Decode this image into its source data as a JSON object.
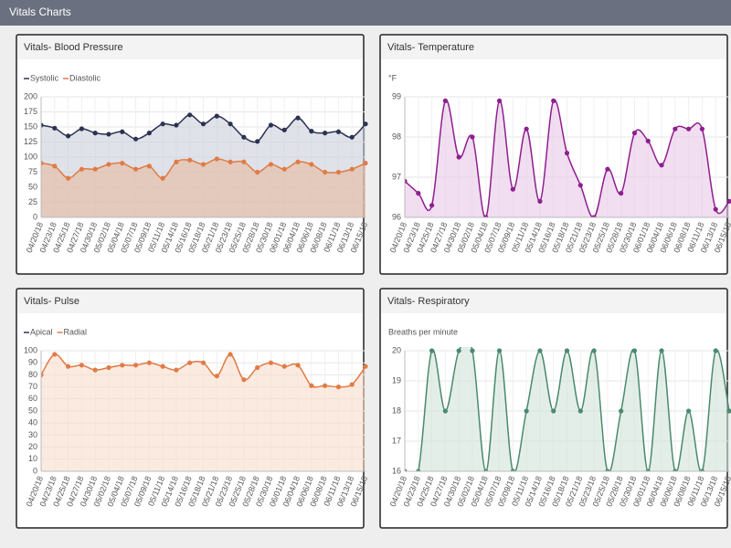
{
  "header": {
    "title": "Vitals Charts"
  },
  "chart_data": [
    {
      "type": "line",
      "title": "Vitals- Blood Pressure",
      "legend": "top-left",
      "grid": true,
      "smooth": true,
      "categories": [
        "04/20/18",
        "04/23/18",
        "04/25/18",
        "04/27/18",
        "04/30/18",
        "05/02/18",
        "05/04/18",
        "05/07/18",
        "05/09/18",
        "05/11/18",
        "05/14/18",
        "05/16/18",
        "05/18/18",
        "05/21/18",
        "05/23/18",
        "05/25/18",
        "05/28/18",
        "05/30/18",
        "06/01/18",
        "06/04/18",
        "06/06/18",
        "06/08/18",
        "06/11/18",
        "06/13/18",
        "06/15/18"
      ],
      "series": [
        {
          "name": "Systolic",
          "color": "#2b3252",
          "fill": "#c9ced8",
          "values": [
            153,
            148,
            135,
            147,
            140,
            138,
            142,
            130,
            140,
            155,
            153,
            170,
            155,
            168,
            155,
            133,
            126,
            153,
            145,
            165,
            143,
            140,
            142,
            133,
            155
          ]
        },
        {
          "name": "Diastolic",
          "color": "#e07b45",
          "fill": "#e8b9a0",
          "values": [
            90,
            85,
            65,
            80,
            80,
            88,
            90,
            80,
            85,
            65,
            92,
            95,
            88,
            97,
            92,
            92,
            75,
            88,
            80,
            92,
            88,
            75,
            75,
            80,
            90
          ]
        }
      ],
      "ylim": [
        0,
        200
      ],
      "yticks": [
        0,
        25,
        50,
        75,
        100,
        125,
        150,
        175,
        200
      ]
    },
    {
      "type": "line",
      "title": "Vitals- Temperature",
      "y_label": "°F",
      "grid": true,
      "smooth": true,
      "categories": [
        "04/20/18",
        "04/23/18",
        "04/25/18",
        "04/27/18",
        "04/30/18",
        "05/02/18",
        "05/04/18",
        "05/07/18",
        "05/09/18",
        "05/11/18",
        "05/14/18",
        "05/16/18",
        "05/18/18",
        "05/21/18",
        "05/23/18",
        "05/25/18",
        "05/28/18",
        "05/30/18",
        "06/01/18",
        "06/04/18",
        "06/06/18",
        "06/08/18",
        "06/11/18",
        "06/13/18",
        "06/15/18"
      ],
      "series": [
        {
          "color": "#8e1f8e",
          "fill": "#e8c8e8",
          "values": [
            96.9,
            96.6,
            96.3,
            98.9,
            97.5,
            98.0,
            96.0,
            98.9,
            96.7,
            98.2,
            96.4,
            98.9,
            97.6,
            96.8,
            96.0,
            97.2,
            96.6,
            98.1,
            97.9,
            97.3,
            98.2,
            98.2,
            98.2,
            96.2,
            96.4
          ]
        }
      ],
      "ylim": [
        96,
        99
      ],
      "yticks": [
        96,
        97,
        98,
        99
      ]
    },
    {
      "type": "line",
      "title": "Vitals- Pulse",
      "legend": "top-left",
      "grid": true,
      "smooth": true,
      "categories": [
        "04/20/18",
        "04/23/18",
        "04/25/18",
        "04/27/18",
        "04/30/18",
        "05/02/18",
        "05/04/18",
        "05/07/18",
        "05/09/18",
        "05/11/18",
        "05/14/18",
        "05/16/18",
        "05/18/18",
        "05/21/18",
        "05/23/18",
        "05/25/18",
        "05/28/18",
        "05/30/18",
        "06/01/18",
        "06/04/18",
        "06/06/18",
        "06/08/18",
        "06/11/18",
        "06/13/18",
        "06/15/18"
      ],
      "series": [
        {
          "name": "Apical",
          "color": "#2b3252",
          "fill": "#c9ced8",
          "values": [
            null,
            null,
            null,
            null,
            null,
            null,
            null,
            null,
            null,
            null,
            null,
            null,
            null,
            null,
            null,
            null,
            null,
            null,
            null,
            null,
            null,
            null,
            null,
            null,
            null
          ]
        },
        {
          "name": "Radial",
          "color": "#e07b45",
          "fill": "#f9dccb",
          "values": [
            80,
            97,
            87,
            88,
            84,
            86,
            88,
            88,
            90,
            87,
            84,
            90,
            90,
            79,
            97,
            76,
            86,
            90,
            87,
            88,
            71,
            71,
            70,
            72,
            87
          ]
        }
      ],
      "ylim": [
        0,
        100
      ],
      "yticks": [
        0,
        10,
        20,
        30,
        40,
        50,
        60,
        70,
        80,
        90,
        100
      ]
    },
    {
      "type": "line",
      "title": "Vitals- Respiratory",
      "y_label": "Breaths per minute",
      "grid": true,
      "smooth": true,
      "categories": [
        "04/20/18",
        "04/23/18",
        "04/25/18",
        "04/27/18",
        "04/30/18",
        "05/02/18",
        "05/04/18",
        "05/07/18",
        "05/09/18",
        "05/11/18",
        "05/14/18",
        "05/16/18",
        "05/18/18",
        "05/21/18",
        "05/23/18",
        "05/25/18",
        "05/28/18",
        "05/30/18",
        "06/01/18",
        "06/04/18",
        "06/06/18",
        "06/08/18",
        "06/11/18",
        "06/13/18",
        "06/15/18"
      ],
      "series": [
        {
          "color": "#4a8a6e",
          "fill": "#d2e3d9",
          "values": [
            16,
            16,
            20,
            18,
            20,
            20,
            16,
            20,
            16,
            18,
            20,
            18,
            20,
            18,
            20,
            16,
            18,
            20,
            16,
            20,
            16,
            18,
            16,
            20,
            18
          ]
        }
      ],
      "ylim": [
        16,
        20
      ],
      "yticks": [
        16,
        17,
        18,
        19,
        20
      ]
    }
  ]
}
